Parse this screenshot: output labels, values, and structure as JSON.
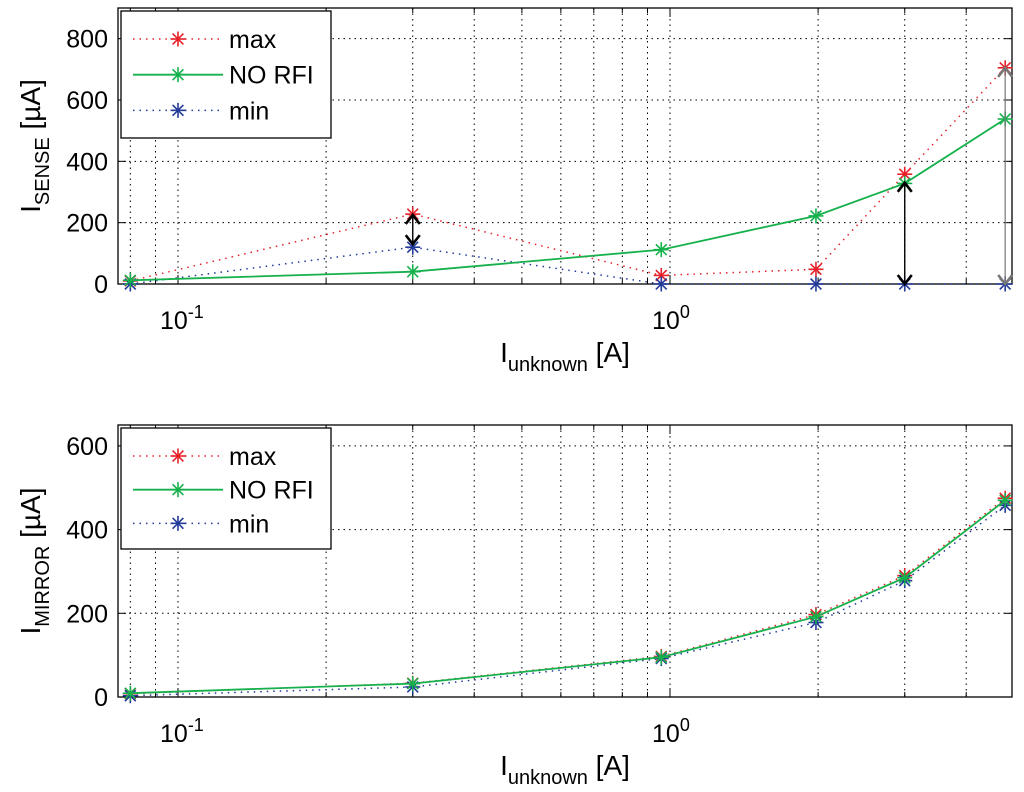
{
  "chart_data": [
    {
      "type": "line",
      "x_scale": "log",
      "xlim": [
        0.08,
        4.8
      ],
      "ylim": [
        0,
        900
      ],
      "y_ticks": [
        0,
        200,
        400,
        600,
        800
      ],
      "x_tick_labels": [
        {
          "value": 0.1,
          "base": "10",
          "exp": "-1"
        },
        {
          "value": 1,
          "base": "10",
          "exp": "0"
        }
      ],
      "xlabel": {
        "main": "I",
        "sub": "unknown",
        "unit": " [A]"
      },
      "ylabel": {
        "main": "I",
        "sub": "SENSE",
        "unit": " [µA]"
      },
      "grid": true,
      "legend_position": "top-left",
      "x": [
        0.08,
        0.3,
        0.96,
        1.98,
        3.0,
        4.8
      ],
      "series": [
        {
          "name": "max",
          "color": "#e8202a",
          "style": "dotted",
          "values": [
            10,
            228,
            28,
            48,
            358,
            705
          ]
        },
        {
          "name": "NO RFI",
          "color": "#16b14c",
          "style": "solid",
          "values": [
            12,
            40,
            112,
            222,
            328,
            538
          ]
        },
        {
          "name": "min",
          "color": "#233a99",
          "style": "dotted",
          "values": [
            0,
            120,
            0,
            0,
            0,
            0
          ]
        }
      ],
      "annotations": [
        {
          "type": "double-arrow",
          "x": 0.3,
          "y_from": 130,
          "y_to": 225,
          "color": "#000000"
        },
        {
          "type": "double-arrow",
          "x": 3.0,
          "y_from": 0,
          "y_to": 330,
          "color": "#000000"
        },
        {
          "type": "double-arrow",
          "x": 4.8,
          "y_from": 0,
          "y_to": 705,
          "color": "#777777"
        }
      ]
    },
    {
      "type": "line",
      "x_scale": "log",
      "xlim": [
        0.08,
        4.8
      ],
      "ylim": [
        0,
        650
      ],
      "y_ticks": [
        0,
        200,
        400,
        600
      ],
      "x_tick_labels": [
        {
          "value": 0.1,
          "base": "10",
          "exp": "-1"
        },
        {
          "value": 1,
          "base": "10",
          "exp": "0"
        }
      ],
      "xlabel": {
        "main": "I",
        "sub": "unknown",
        "unit": " [A]"
      },
      "ylabel": {
        "main": "I",
        "sub": "MIRROR",
        "unit": " [µA]"
      },
      "grid": true,
      "legend_position": "top-left",
      "x": [
        0.08,
        0.3,
        0.96,
        1.98,
        3.0,
        4.8
      ],
      "series": [
        {
          "name": "max",
          "color": "#e8202a",
          "style": "dotted",
          "values": [
            8,
            33,
            97,
            197,
            290,
            475
          ]
        },
        {
          "name": "NO RFI",
          "color": "#16b14c",
          "style": "solid",
          "values": [
            9,
            32,
            95,
            192,
            285,
            470
          ]
        },
        {
          "name": "min",
          "color": "#233a99",
          "style": "dotted",
          "values": [
            3,
            24,
            92,
            178,
            278,
            458
          ]
        }
      ],
      "annotations": []
    }
  ]
}
